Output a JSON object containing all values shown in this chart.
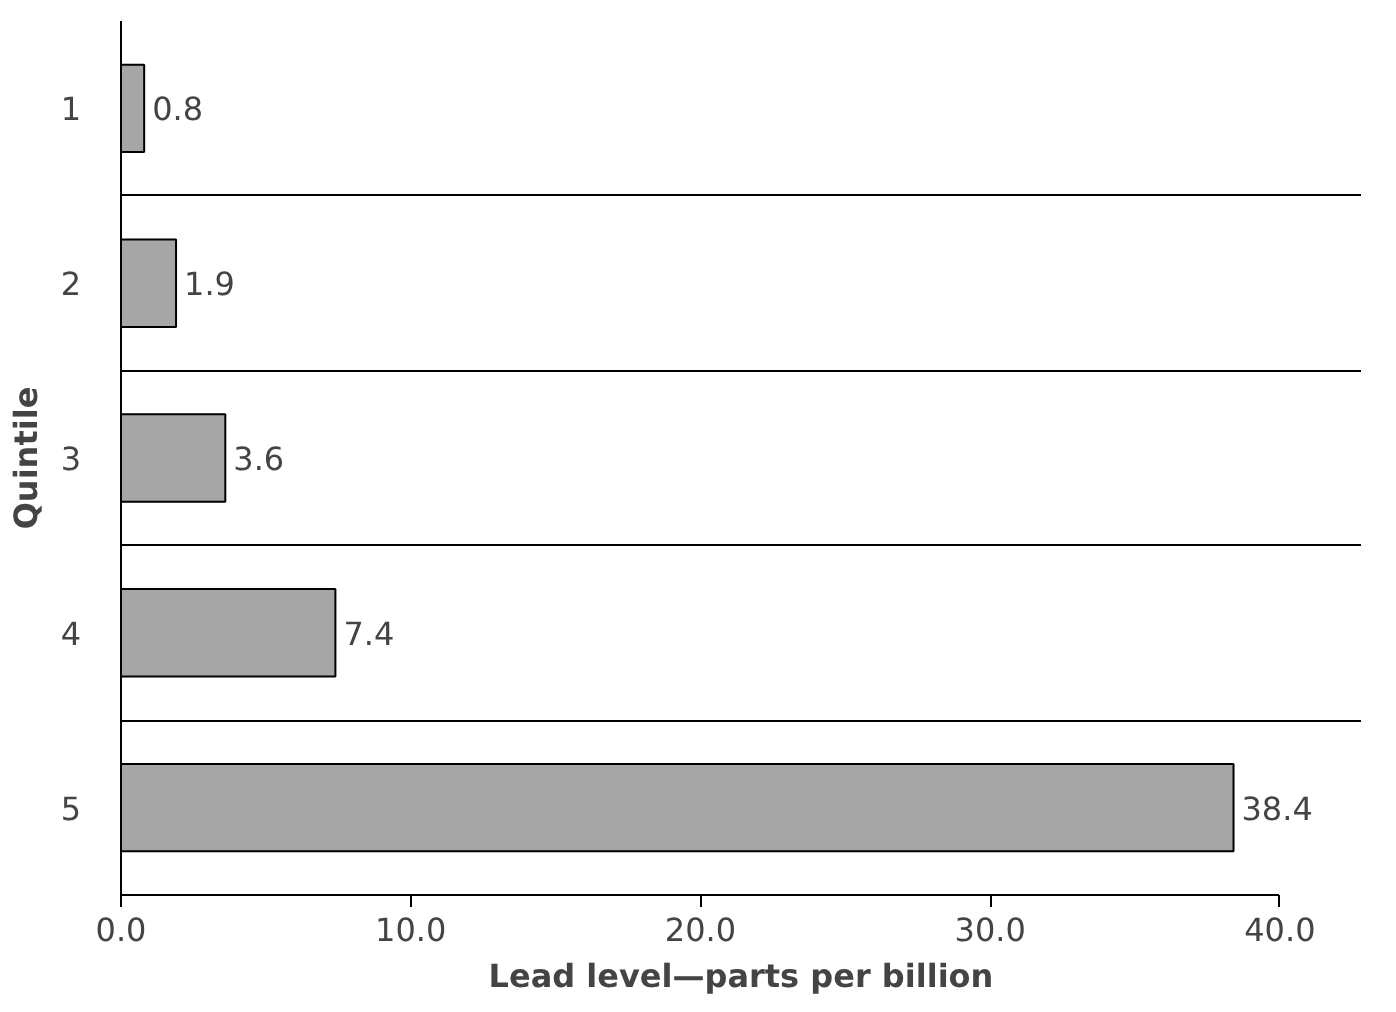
{
  "chart_data": {
    "type": "bar",
    "orientation": "horizontal",
    "xlabel": "Lead level—parts per billion",
    "ylabel": "Quintile",
    "categories": [
      "1",
      "2",
      "3",
      "4",
      "5"
    ],
    "values": [
      0.8,
      1.9,
      3.6,
      7.4,
      38.4
    ],
    "color": "#a6a6a6",
    "xlim": [
      0,
      40
    ],
    "xticks": [
      {
        "value": 0,
        "label": "0.0"
      },
      {
        "value": 10,
        "label": "10.0"
      },
      {
        "value": 20,
        "label": "20.0"
      },
      {
        "value": 30,
        "label": "30.0"
      },
      {
        "value": 40,
        "label": "40.0"
      }
    ],
    "data_labels": true,
    "grid": "y"
  }
}
